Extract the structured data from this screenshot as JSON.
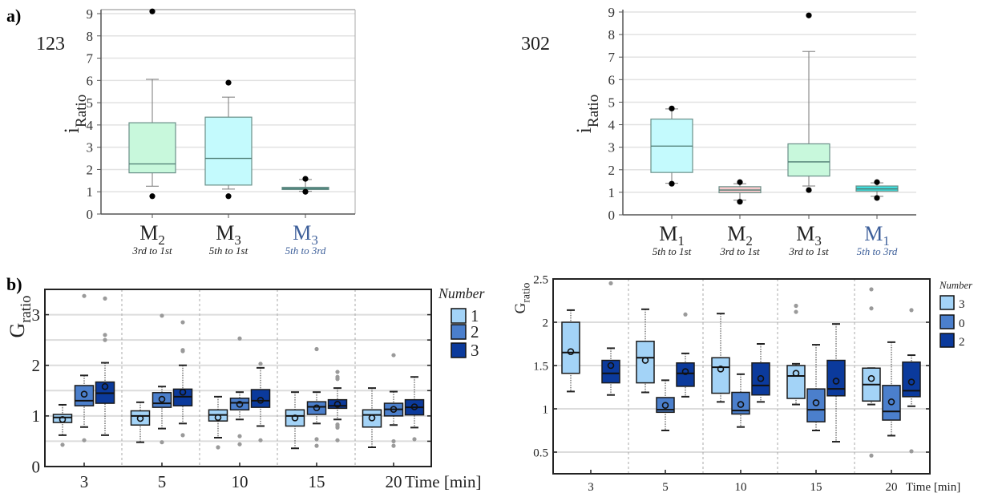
{
  "panel_labels": {
    "a": "a)",
    "b": "b)"
  },
  "chart_data": [
    {
      "id": "a-left",
      "type": "box",
      "annotation": "123",
      "ylabel": {
        "main": "i",
        "sub": "Ratio"
      },
      "ylim": [
        0,
        9
      ],
      "yticks": [
        0,
        1,
        2,
        3,
        4,
        5,
        6,
        7,
        8,
        9
      ],
      "grid": true,
      "categories": [
        {
          "main": "M",
          "sub": "2",
          "desc": "3rd to 1st",
          "color": "#c8f8dc",
          "label_color": "#222222"
        },
        {
          "main": "M",
          "sub": "3",
          "desc": "5th to 1st",
          "color": "#c4fafd",
          "label_color": "#222222"
        },
        {
          "main": "M",
          "sub": "3",
          "desc": "5th to 3rd",
          "color": "#5fb9b0",
          "label_color": "#3d5f9a"
        }
      ],
      "boxes": [
        {
          "q1": 1.85,
          "median": 2.25,
          "q3": 4.1,
          "whisker_low": 1.25,
          "whisker_high": 6.05,
          "outliers": [
            9.1,
            0.8
          ]
        },
        {
          "q1": 1.3,
          "median": 2.5,
          "q3": 4.35,
          "whisker_low": 1.12,
          "whisker_high": 5.25,
          "outliers": [
            5.9,
            0.8
          ]
        },
        {
          "q1": 1.1,
          "median": 1.15,
          "q3": 1.2,
          "whisker_low": 1.02,
          "whisker_high": 1.55,
          "outliers": [
            1.58,
            1.0
          ]
        }
      ]
    },
    {
      "id": "a-right",
      "type": "box",
      "annotation": "302",
      "ylabel": {
        "main": "i",
        "sub": "Ratio"
      },
      "ylim": [
        0,
        9
      ],
      "yticks": [
        0,
        1,
        2,
        3,
        4,
        5,
        6,
        7,
        8,
        9
      ],
      "grid": true,
      "categories": [
        {
          "main": "M",
          "sub": "1",
          "desc": "5th to 1st",
          "color": "#c4fafd",
          "label_color": "#222222"
        },
        {
          "main": "M",
          "sub": "2",
          "desc": "3rd to 1st",
          "color": "#f6c9cb",
          "label_color": "#222222"
        },
        {
          "main": "M",
          "sub": "3",
          "desc": "3rd to 1st",
          "color": "#c8f8dc",
          "label_color": "#222222"
        },
        {
          "main": "M",
          "sub": "1",
          "desc": "5th to 3rd",
          "color": "#3fdcdc",
          "label_color": "#3d5f9a"
        }
      ],
      "boxes": [
        {
          "q1": 1.88,
          "median": 3.05,
          "q3": 4.25,
          "whisker_low": 1.4,
          "whisker_high": 4.7,
          "outliers": [
            4.72,
            1.38
          ]
        },
        {
          "q1": 0.98,
          "median": 1.1,
          "q3": 1.25,
          "whisker_low": 0.65,
          "whisker_high": 1.38,
          "outliers": [
            1.45,
            0.58
          ]
        },
        {
          "q1": 1.72,
          "median": 2.35,
          "q3": 3.15,
          "whisker_low": 1.28,
          "whisker_high": 7.25,
          "outliers": [
            8.85,
            1.1
          ]
        },
        {
          "q1": 1.05,
          "median": 1.15,
          "q3": 1.28,
          "whisker_low": 0.82,
          "whisker_high": 1.42,
          "outliers": [
            1.45,
            0.75
          ]
        }
      ]
    },
    {
      "id": "b-left",
      "type": "grouped-box",
      "ylabel": {
        "main": "G",
        "sub": "ratio"
      },
      "xlabel": "Time [min]",
      "ylim": [
        0,
        3.5
      ],
      "yticks": [
        0,
        1,
        2,
        3
      ],
      "grid": true,
      "categories": [
        "3",
        "5",
        "10",
        "15",
        "20"
      ],
      "legend": {
        "title": "Number",
        "position": "right"
      },
      "series": [
        {
          "name": "1",
          "color": "#a3d3f7",
          "boxes": [
            {
              "q1": 0.87,
              "median": 0.97,
              "q3": 1.03,
              "whisker_low": 0.62,
              "whisker_high": 1.22,
              "mean": 0.93,
              "outliers": [
                0.43
              ]
            },
            {
              "q1": 0.82,
              "median": 1.0,
              "q3": 1.1,
              "whisker_low": 0.48,
              "whisker_high": 1.27,
              "mean": 0.95,
              "outliers": []
            },
            {
              "q1": 0.9,
              "median": 1.02,
              "q3": 1.12,
              "whisker_low": 0.57,
              "whisker_high": 1.38,
              "mean": 0.97,
              "outliers": [
                0.38
              ]
            },
            {
              "q1": 0.8,
              "median": 1.0,
              "q3": 1.12,
              "whisker_low": 0.36,
              "whisker_high": 1.47,
              "mean": 0.96,
              "outliers": []
            },
            {
              "q1": 0.78,
              "median": 1.02,
              "q3": 1.12,
              "whisker_low": 0.38,
              "whisker_high": 1.55,
              "mean": 0.96,
              "outliers": []
            }
          ]
        },
        {
          "name": "2",
          "color": "#4b7fcc",
          "boxes": [
            {
              "q1": 1.2,
              "median": 1.3,
              "q3": 1.6,
              "whisker_low": 0.78,
              "whisker_high": 1.8,
              "mean": 1.43,
              "outliers": [
                3.37,
                0.52
              ]
            },
            {
              "q1": 1.17,
              "median": 1.25,
              "q3": 1.46,
              "whisker_low": 0.75,
              "whisker_high": 1.58,
              "mean": 1.33,
              "outliers": [
                2.98,
                0.48
              ]
            },
            {
              "q1": 1.12,
              "median": 1.26,
              "q3": 1.35,
              "whisker_low": 0.93,
              "whisker_high": 1.47,
              "mean": 1.23,
              "outliers": [
                2.53,
                0.6,
                0.44
              ]
            },
            {
              "q1": 1.03,
              "median": 1.18,
              "q3": 1.28,
              "whisker_low": 0.85,
              "whisker_high": 1.47,
              "mean": 1.16,
              "outliers": [
                2.32,
                0.54,
                0.41
              ]
            },
            {
              "q1": 1.0,
              "median": 1.13,
              "q3": 1.25,
              "whisker_low": 0.82,
              "whisker_high": 1.48,
              "mean": 1.13,
              "outliers": [
                2.2,
                0.5,
                0.41
              ]
            }
          ]
        },
        {
          "name": "3",
          "color": "#0b3a9c",
          "boxes": [
            {
              "q1": 1.25,
              "median": 1.45,
              "q3": 1.67,
              "whisker_low": 0.62,
              "whisker_high": 2.05,
              "mean": 1.58,
              "outliers": [
                3.32,
                2.6,
                2.5
              ]
            },
            {
              "q1": 1.2,
              "median": 1.38,
              "q3": 1.53,
              "whisker_low": 0.85,
              "whisker_high": 2.0,
              "mean": 1.47,
              "outliers": [
                2.85,
                2.3,
                2.28,
                0.62
              ]
            },
            {
              "q1": 1.17,
              "median": 1.3,
              "q3": 1.52,
              "whisker_low": 0.8,
              "whisker_high": 1.95,
              "mean": 1.31,
              "outliers": [
                2.03,
                0.52
              ]
            },
            {
              "q1": 1.15,
              "median": 1.2,
              "q3": 1.32,
              "whisker_low": 0.93,
              "whisker_high": 1.55,
              "mean": 1.23,
              "outliers": [
                1.87,
                1.77,
                1.73,
                0.83,
                0.8,
                0.77,
                0.52
              ]
            },
            {
              "q1": 1.02,
              "median": 1.17,
              "q3": 1.32,
              "whisker_low": 0.77,
              "whisker_high": 1.77,
              "mean": 1.18,
              "outliers": [
                0.54
              ]
            }
          ]
        }
      ]
    },
    {
      "id": "b-right",
      "type": "grouped-box",
      "ylabel": {
        "main": "G",
        "sub": "ratio"
      },
      "xlabel": "Time [min]",
      "ylim": [
        0.25,
        2.5
      ],
      "yticks": [
        0.5,
        1,
        1.5,
        2,
        2.5
      ],
      "grid": true,
      "categories": [
        "3",
        "5",
        "10",
        "15",
        "20"
      ],
      "legend": {
        "title": "Number",
        "position": "right"
      },
      "series": [
        {
          "name": "3",
          "color": "#a3d3f7",
          "boxes": [
            {
              "q1": 1.41,
              "median": 1.65,
              "q3": 2.0,
              "whisker_low": 1.2,
              "whisker_high": 2.14,
              "mean": 1.66,
              "outliers": []
            },
            {
              "q1": 1.3,
              "median": 1.59,
              "q3": 1.78,
              "whisker_low": 1.19,
              "whisker_high": 2.15,
              "mean": 1.56,
              "outliers": []
            },
            {
              "q1": 1.18,
              "median": 1.48,
              "q3": 1.59,
              "whisker_low": 1.08,
              "whisker_high": 2.1,
              "mean": 1.46,
              "outliers": []
            },
            {
              "q1": 1.12,
              "median": 1.38,
              "q3": 1.5,
              "whisker_low": 1.05,
              "whisker_high": 1.52,
              "mean": 1.41,
              "outliers": [
                2.19,
                2.12
              ]
            },
            {
              "q1": 1.09,
              "median": 1.28,
              "q3": 1.47,
              "whisker_low": 1.05,
              "whisker_high": 1.47,
              "mean": 1.35,
              "outliers": [
                2.38,
                2.16,
                0.46
              ]
            }
          ]
        },
        {
          "name": "0",
          "color": "#4b7fcc",
          "boxes": [
            null,
            {
              "q1": 0.96,
              "median": 0.99,
              "q3": 1.13,
              "whisker_low": 0.75,
              "whisker_high": 1.33,
              "mean": 1.04,
              "outliers": []
            },
            {
              "q1": 0.94,
              "median": 0.98,
              "q3": 1.19,
              "whisker_low": 0.79,
              "whisker_high": 1.4,
              "mean": 1.05,
              "outliers": []
            },
            {
              "q1": 0.85,
              "median": 0.99,
              "q3": 1.23,
              "whisker_low": 0.75,
              "whisker_high": 1.74,
              "mean": 1.07,
              "outliers": []
            },
            {
              "q1": 0.87,
              "median": 0.97,
              "q3": 1.27,
              "whisker_low": 0.69,
              "whisker_high": 1.77,
              "mean": 1.08,
              "outliers": []
            }
          ]
        },
        {
          "name": "2",
          "color": "#0b3a9c",
          "boxes": [
            {
              "q1": 1.3,
              "median": 1.41,
              "q3": 1.56,
              "whisker_low": 1.16,
              "whisker_high": 1.7,
              "mean": 1.5,
              "outliers": [
                2.45
              ]
            },
            {
              "q1": 1.26,
              "median": 1.41,
              "q3": 1.53,
              "whisker_low": 1.14,
              "whisker_high": 1.64,
              "mean": 1.43,
              "outliers": [
                2.09
              ]
            },
            {
              "q1": 1.16,
              "median": 1.27,
              "q3": 1.53,
              "whisker_low": 1.08,
              "whisker_high": 1.75,
              "mean": 1.35,
              "outliers": []
            },
            {
              "q1": 1.15,
              "median": 1.23,
              "q3": 1.56,
              "whisker_low": 0.62,
              "whisker_high": 1.98,
              "mean": 1.32,
              "outliers": []
            },
            {
              "q1": 1.14,
              "median": 1.21,
              "q3": 1.54,
              "whisker_low": 1.03,
              "whisker_high": 1.62,
              "mean": 1.31,
              "outliers": [
                2.14,
                0.51
              ]
            }
          ]
        }
      ]
    }
  ]
}
